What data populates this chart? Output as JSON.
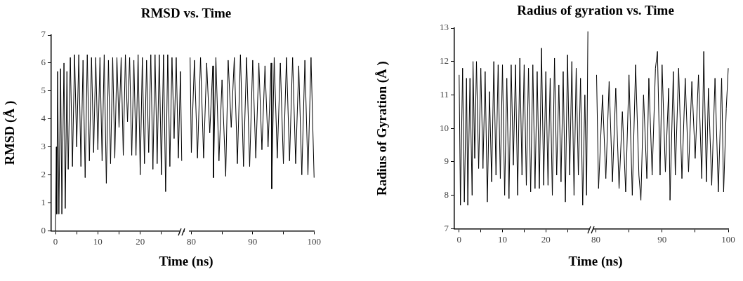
{
  "chart_data": [
    {
      "type": "line",
      "title": "RMSD vs. Time",
      "xlabel": "Time (ns)",
      "ylabel": "RMSD (Å )",
      "marker": "none",
      "series": [
        {
          "color": "#000000",
          "x": [
            0,
            0.2,
            0.3,
            0.5,
            0.8,
            1.2,
            1.5,
            2,
            2.3,
            2.7,
            3,
            3.5,
            4,
            4.5,
            5,
            5.5,
            6,
            6.5,
            7,
            7.5,
            8,
            8.5,
            9,
            9.5,
            10,
            10.5,
            11,
            11.5,
            12,
            12.5,
            13,
            13.5,
            14,
            14.5,
            15,
            15.5,
            16,
            16.5,
            17,
            17.5,
            18,
            18.5,
            19,
            19.5,
            20,
            20.5,
            21,
            21.5,
            22,
            22.5,
            23,
            23.5,
            24,
            24.5,
            25,
            25.5,
            26,
            26.5,
            27,
            27.5,
            28,
            28.5,
            29,
            29.5,
            29.8
          ],
          "values": [
            0,
            3.0,
            0.6,
            5.7,
            0.6,
            5.8,
            0.6,
            6.0,
            0.8,
            5.7,
            2.2,
            6.2,
            2.3,
            6.3,
            3.0,
            6.3,
            2.3,
            6.1,
            1.9,
            6.3,
            2.5,
            6.2,
            2.8,
            6.2,
            2.9,
            6.2,
            2.5,
            6.3,
            1.7,
            6.1,
            2.4,
            6.2,
            2.6,
            6.2,
            3.7,
            6.2,
            2.7,
            6.3,
            3.9,
            6.2,
            2.7,
            6.1,
            2.7,
            6.3,
            2.0,
            6.2,
            2.4,
            6.1,
            2.8,
            6.3,
            2.2,
            6.3,
            2.4,
            6.3,
            2.0,
            6.3,
            1.4,
            6.3,
            2.3,
            6.2,
            3.3,
            6.2,
            2.6,
            5.7,
            2.5
          ]
        }
      ],
      "xlim": [
        -1,
        30.5
      ],
      "xticks": [
        0,
        {
          "value": 5,
          "label": null
        },
        10,
        {
          "value": 15,
          "label": null
        },
        20,
        {
          "value": 25,
          "label": null
        }
      ],
      "ylim": [
        0,
        7
      ],
      "yticks": [
        0,
        1,
        2,
        3,
        4,
        5,
        6,
        7
      ]
    },
    {
      "type": "line",
      "marker": "none",
      "tick_labels": "x",
      "series": [
        {
          "color": "#000000",
          "x": [
            79.8,
            80,
            80.5,
            81,
            81.5,
            82,
            82.5,
            83,
            83.5,
            83.6,
            84,
            84.5,
            85,
            85.6,
            86,
            86.5,
            87,
            87.5,
            88,
            88.5,
            89,
            89.5,
            90,
            90.5,
            91,
            91.5,
            92,
            92.5,
            93,
            93.1,
            93.5,
            94,
            94.5,
            95,
            95.5,
            96,
            96.5,
            97,
            97.5,
            98,
            98.5,
            99,
            99.5,
            100
          ],
          "values": [
            6.2,
            2.8,
            6.1,
            2.6,
            6.2,
            2.6,
            6.0,
            3.5,
            5.9,
            1.9,
            6.2,
            2.5,
            5.4,
            1.95,
            6.1,
            3.7,
            6.2,
            2.4,
            6.3,
            2.3,
            6.2,
            2.3,
            6.1,
            2.6,
            6.0,
            2.9,
            5.9,
            3.0,
            6.0,
            1.5,
            6.2,
            2.6,
            6.0,
            2.4,
            6.2,
            2.5,
            6.2,
            2.4,
            5.9,
            2.0,
            6.1,
            2.0,
            6.2,
            1.9
          ]
        }
      ],
      "xlim": [
        79.7,
        100
      ],
      "xticks": [
        80,
        {
          "value": 85,
          "label": null
        },
        90,
        {
          "value": 95,
          "label": null
        },
        100
      ],
      "ylim": [
        0,
        7
      ],
      "yticks": [
        0,
        1,
        2,
        3,
        4,
        5,
        6,
        7
      ]
    },
    {
      "type": "line",
      "title": "Radius of gyration vs. Time",
      "xlabel": "Time (ns)",
      "ylabel": "Radius of Gyration (Å )",
      "marker": "none",
      "series": [
        {
          "color": "#000000",
          "x": [
            0,
            0.3,
            0.8,
            1.2,
            1.7,
            2,
            2.5,
            3,
            3.2,
            3.6,
            4,
            4.5,
            5,
            5.5,
            6,
            6.5,
            7,
            7.5,
            8,
            8.5,
            9,
            9.5,
            10,
            10.5,
            11,
            11.5,
            12,
            12.5,
            13,
            13.5,
            14,
            14.5,
            15,
            15.5,
            16,
            16.5,
            17,
            17.5,
            18,
            18.5,
            19,
            19.5,
            20,
            20.5,
            21,
            21.5,
            22,
            22.5,
            23,
            23.5,
            24,
            24.5,
            25,
            25.5,
            26,
            26.5,
            27,
            27.5,
            28,
            28.5,
            29,
            29.4,
            29.7
          ],
          "values": [
            11.6,
            7.7,
            11.8,
            7.8,
            11.5,
            7.7,
            11.5,
            8.0,
            12.0,
            9.1,
            12.0,
            8.8,
            11.8,
            8.8,
            11.7,
            7.8,
            11.1,
            8.4,
            12.0,
            8.6,
            11.9,
            8.5,
            11.9,
            8.0,
            11.5,
            7.9,
            11.9,
            8.9,
            11.9,
            8.0,
            12.1,
            8.6,
            11.9,
            8.3,
            11.8,
            8.1,
            11.9,
            8.2,
            11.7,
            8.2,
            12.4,
            8.3,
            11.7,
            8.3,
            11.5,
            8.0,
            12.1,
            8.6,
            11.3,
            8.4,
            11.7,
            7.8,
            12.2,
            8.6,
            12.0,
            8.0,
            11.8,
            8.6,
            11.5,
            7.7,
            11.0,
            8.0,
            12.9
          ]
        }
      ],
      "xlim": [
        -1.1,
        30
      ],
      "xticks": [
        0,
        {
          "value": 5,
          "label": null
        },
        10,
        {
          "value": 15,
          "label": null
        },
        20,
        {
          "value": 25,
          "label": null
        }
      ],
      "ylim": [
        7,
        13
      ],
      "yticks": [
        7,
        8,
        9,
        10,
        11,
        12,
        13
      ]
    },
    {
      "type": "line",
      "marker": "none",
      "tick_labels": "x",
      "series": [
        {
          "color": "#000000",
          "x": [
            80.1,
            80.4,
            81,
            81.5,
            82,
            82.5,
            83,
            83.5,
            84,
            84.5,
            85,
            85.5,
            86,
            86.5,
            86.8,
            87.2,
            87.7,
            88,
            88.5,
            89,
            89.3,
            89.7,
            90,
            90.5,
            91,
            91.2,
            91.7,
            92,
            92.5,
            93,
            93.5,
            94,
            94.5,
            95,
            95.5,
            96,
            96.3,
            96.7,
            97,
            97.5,
            98,
            98.5,
            99,
            99.3,
            99.7,
            100
          ],
          "values": [
            11.6,
            8.2,
            11.0,
            8.5,
            11.4,
            8.4,
            11.2,
            8.2,
            10.5,
            8.1,
            11.6,
            8.0,
            11.9,
            8.6,
            7.85,
            11.0,
            8.5,
            11.5,
            8.6,
            11.8,
            12.3,
            8.6,
            11.9,
            8.7,
            11.2,
            7.85,
            11.7,
            8.6,
            11.8,
            8.5,
            11.5,
            8.7,
            11.4,
            9.1,
            11.6,
            8.5,
            12.3,
            8.4,
            11.2,
            8.3,
            11.5,
            8.1,
            11.5,
            8.1,
            10.6,
            11.8
          ]
        }
      ],
      "xlim": [
        79.7,
        100
      ],
      "xticks": [
        80,
        {
          "value": 85,
          "label": null
        },
        90,
        {
          "value": 95,
          "label": null
        },
        100
      ],
      "ylim": [
        7,
        13
      ],
      "yticks": [
        7,
        8,
        9,
        10,
        11,
        12,
        13
      ]
    }
  ]
}
